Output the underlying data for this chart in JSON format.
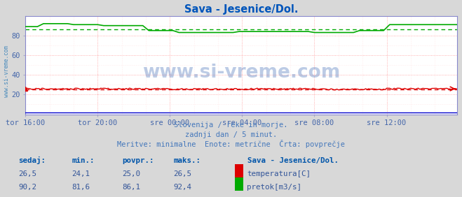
{
  "title": "Sava - Jesenice/Dol.",
  "title_color": "#0055bb",
  "bg_color": "#d8d8d8",
  "plot_bg_color": "#ffffff",
  "grid_color": "#ff9999",
  "grid_minor_color": "#ffdddd",
  "axis_color": "#8888cc",
  "tick_color": "#4466aa",
  "watermark": "www.si-vreme.com",
  "watermark_color": "#2255aa",
  "watermark_alpha": 0.3,
  "subtitle_lines": [
    "Slovenija / reke in morje.",
    "zadnji dan / 5 minut.",
    "Meritve: minimalne  Enote: metrične  Črta: povprečje"
  ],
  "subtitle_color": "#4477bb",
  "x_tick_labels": [
    "tor 16:00",
    "tor 20:00",
    "sre 00:00",
    "sre 04:00",
    "sre 08:00",
    "sre 12:00"
  ],
  "x_tick_positions": [
    0,
    48,
    96,
    144,
    192,
    240
  ],
  "n_points": 288,
  "ylim": [
    0,
    100
  ],
  "yticks": [
    20,
    40,
    60,
    80
  ],
  "temp_color": "#dd0000",
  "flow_color": "#00aa00",
  "temp_avg": 25.0,
  "flow_avg": 86.1,
  "temp_min": 24.1,
  "temp_max": 26.5,
  "flow_min": 81.6,
  "flow_max": 92.4,
  "temp_current": 26.5,
  "flow_current": 90.2,
  "sidebar_color": "#4488bb",
  "table_label_color": "#0055aa",
  "table_value_color": "#335599",
  "legend_title": "Sava - Jesenice/Dol.",
  "legend_title_color": "#0055aa",
  "legend_temp_label": "temperatura[C]",
  "legend_flow_label": "pretok[m3/s]",
  "table_col_headers": [
    "sedaj:",
    "min.:",
    "povpr.:",
    "maks.:"
  ],
  "table_row1": [
    "26,5",
    "24,1",
    "25,0",
    "26,5"
  ],
  "table_row2": [
    "90,2",
    "81,6",
    "86,1",
    "92,4"
  ],
  "blue_line_value": 2.0,
  "blue_line_color": "#0000cc"
}
